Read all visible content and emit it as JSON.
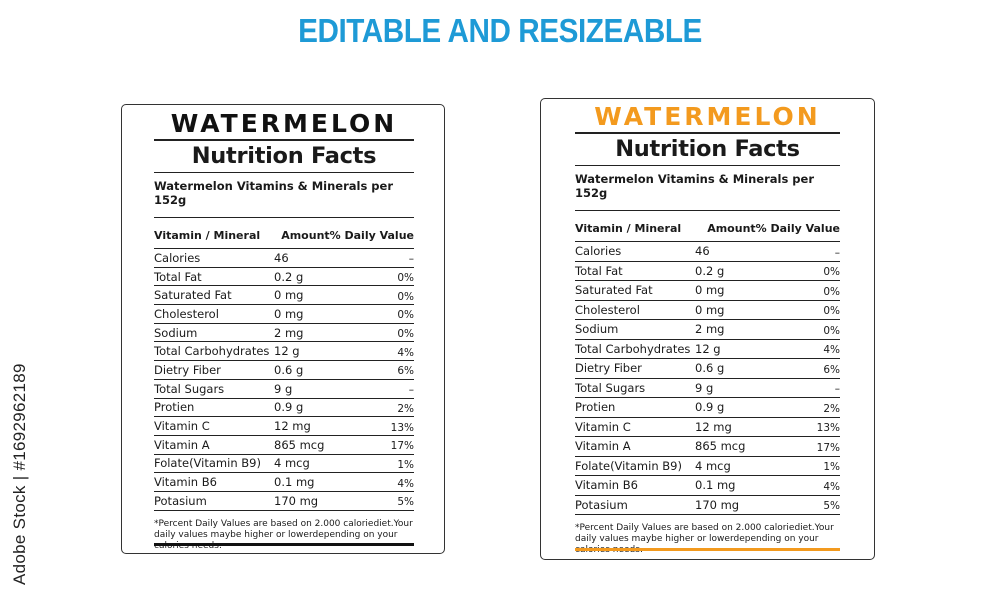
{
  "banner": "EDITABLE AND RESIZEABLE",
  "credit": "Adobe Stock | #1692962189",
  "accent_color": "#f39a1e",
  "banner_color": "#1e9ad6",
  "label": {
    "brand": "WATERMELON",
    "title": "Nutrition Facts",
    "subtitle": "Watermelon Vitamins & Minerals per 152g",
    "col_name": "Vitamin / Mineral",
    "col_value": "Amount% Daily Value",
    "rows": [
      {
        "name": "Calories",
        "amount": "46",
        "dv": "–"
      },
      {
        "name": "Total Fat",
        "amount": "0.2 g",
        "dv": "0%"
      },
      {
        "name": "Saturated Fat",
        "amount": "0 mg",
        "dv": "0%"
      },
      {
        "name": "Cholesterol",
        "amount": "0 mg",
        "dv": "0%"
      },
      {
        "name": "Sodium",
        "amount": "2 mg",
        "dv": "0%"
      },
      {
        "name": "Total Carbohydrates",
        "amount": "12 g",
        "dv": "4%"
      },
      {
        "name": "Dietry Fiber",
        "amount": "0.6 g",
        "dv": "6%"
      },
      {
        "name": "Total Sugars",
        "amount": "9 g",
        "dv": "–"
      },
      {
        "name": "Protien",
        "amount": "0.9 g",
        "dv": "2%"
      },
      {
        "name": "Vitamin C",
        "amount": "12 mg",
        "dv": "13%"
      },
      {
        "name": "Vitamin A",
        "amount": "865 mcg",
        "dv": "17%"
      },
      {
        "name": "Folate(Vitamin B9)",
        "amount": "4 mcg",
        "dv": "1%"
      },
      {
        "name": "Vitamin B6",
        "amount": "0.1 mg",
        "dv": "4%"
      },
      {
        "name": "Potasium",
        "amount": "170 mg",
        "dv": "5%"
      }
    ],
    "footnote": "*Percent Daily Values are based on 2.000 caloriediet.Your daily values maybe higher or lowerdepending on your calories needs."
  }
}
